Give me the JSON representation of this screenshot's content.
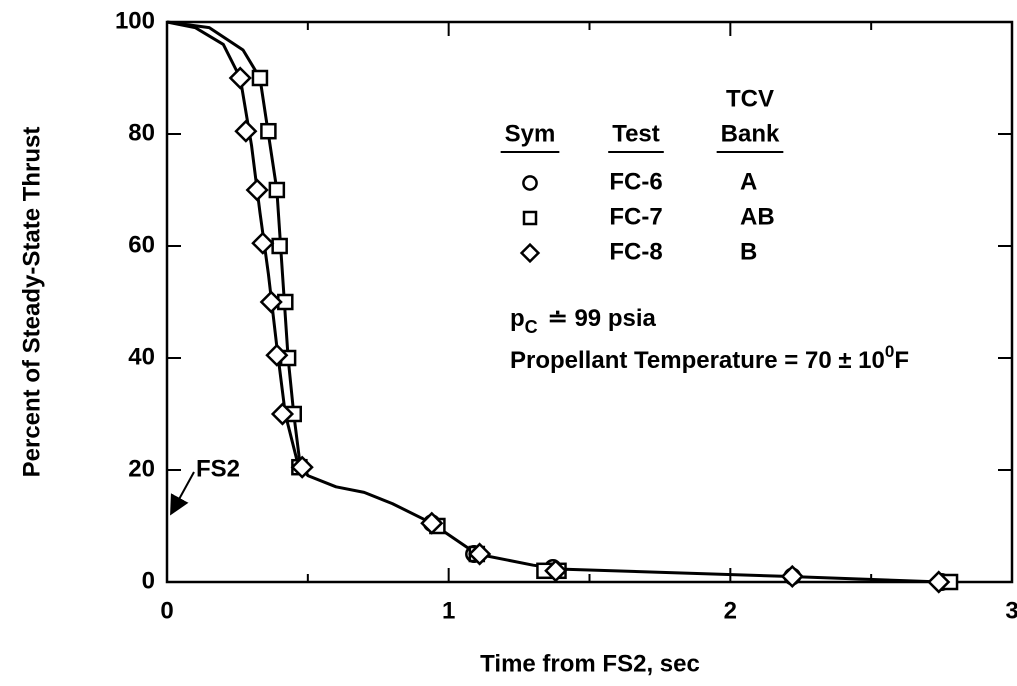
{
  "chart_data": {
    "type": "scatter",
    "x_label": "Time from FS2,  sec",
    "y_label": "Percent of Steady-State Thrust",
    "xlim": [
      0,
      3
    ],
    "xticks": [
      0,
      1,
      2,
      3
    ],
    "xminor_ticks": [
      0.5,
      1.5,
      2.5
    ],
    "ylim": [
      0,
      100
    ],
    "yticks": [
      0,
      20,
      40,
      60,
      80,
      100
    ],
    "color": "#000000",
    "legend": {
      "header_top": "TCV",
      "headers": [
        "Sym",
        "Test",
        "Bank"
      ]
    },
    "series": [
      {
        "name": "FC-6",
        "bank": "A",
        "marker": "circle",
        "x": [
          0.94,
          1.09,
          1.37,
          2.22,
          2.75
        ],
        "values": [
          10.5,
          5,
          2.5,
          1,
          0
        ]
      },
      {
        "name": "FC-7",
        "bank": "AB",
        "marker": "square",
        "x": [
          0.33,
          0.36,
          0.39,
          0.4,
          0.42,
          0.43,
          0.45,
          0.47,
          0.96,
          1.1,
          1.34,
          1.39,
          2.78
        ],
        "values": [
          90,
          80.5,
          70,
          60,
          50,
          40,
          30,
          20.5,
          10,
          5,
          2,
          2,
          0
        ]
      },
      {
        "name": "FC-8",
        "bank": "B",
        "marker": "diamond",
        "x": [
          0.26,
          0.28,
          0.32,
          0.34,
          0.37,
          0.39,
          0.41,
          0.48,
          0.94,
          1.11,
          1.38,
          2.22,
          2.74
        ],
        "values": [
          90,
          80.5,
          70,
          60.5,
          50,
          40.5,
          30,
          20.5,
          10.5,
          5,
          2,
          1,
          0
        ]
      }
    ],
    "curves": [
      {
        "x": [
          0,
          0.1,
          0.2,
          0.26,
          0.3,
          0.33,
          0.36,
          0.39,
          0.42,
          0.46,
          0.5,
          0.6,
          0.7,
          0.8,
          0.94,
          1.1,
          1.3,
          1.4,
          2.2,
          2.75
        ],
        "values": [
          100,
          99,
          96,
          90,
          78,
          66,
          55,
          42,
          30,
          22,
          19,
          17,
          16,
          14,
          10.5,
          5,
          3,
          2.3,
          1,
          0
        ]
      },
      {
        "x": [
          0,
          0.15,
          0.27,
          0.33,
          0.36,
          0.39,
          0.41,
          0.43,
          0.45,
          0.47,
          0.5
        ],
        "values": [
          100,
          99,
          95,
          90,
          80,
          70,
          55,
          40,
          30,
          22,
          19
        ]
      }
    ],
    "annotations": {
      "pressure": {
        "symbol": "p",
        "subscript": "C",
        "text": "≐ 99 psia"
      },
      "temperature": {
        "text": "Propellant Temperature = 70 ± 10",
        "superscript": "0",
        "unit": "F"
      },
      "arrow": {
        "text": "FS2"
      }
    }
  }
}
